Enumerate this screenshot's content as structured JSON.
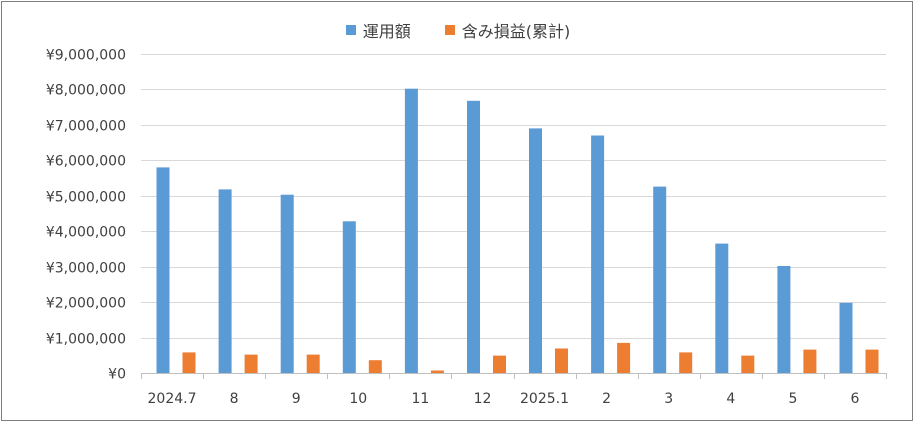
{
  "chart_data": {
    "type": "bar",
    "title": "",
    "xlabel": "",
    "ylabel": "",
    "categories": [
      "2024.7",
      "8",
      "9",
      "10",
      "11",
      "12",
      "2025.1",
      "2",
      "3",
      "4",
      "5",
      "6"
    ],
    "series": [
      {
        "name": "運用額",
        "color": "#5b9bd5",
        "values": [
          5800000,
          5180000,
          5030000,
          4280000,
          8020000,
          7680000,
          6900000,
          6700000,
          5260000,
          3650000,
          3020000,
          1980000
        ]
      },
      {
        "name": "含み損益(累計)",
        "color": "#ed7d31",
        "values": [
          580000,
          520000,
          520000,
          360000,
          70000,
          490000,
          690000,
          850000,
          580000,
          490000,
          660000,
          660000
        ]
      }
    ],
    "ylim": [
      0,
      9000000
    ],
    "yticks": [
      "¥0",
      "¥1,000,000",
      "¥2,000,000",
      "¥3,000,000",
      "¥4,000,000",
      "¥5,000,000",
      "¥6,000,000",
      "¥7,000,000",
      "¥8,000,000",
      "¥9,000,000"
    ],
    "grid": true,
    "legend_position": "top-center"
  }
}
